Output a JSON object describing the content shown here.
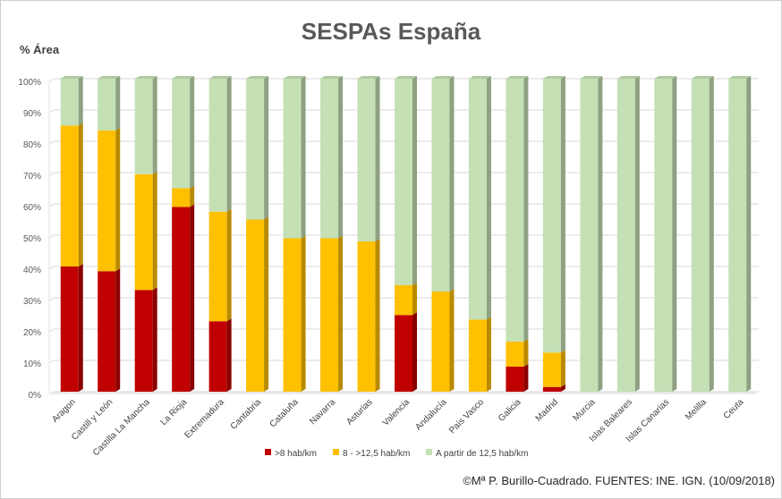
{
  "chart_data": {
    "type": "bar",
    "stacked": true,
    "percent_stacked": true,
    "title": "SESPAs España",
    "ylabel": "% Área",
    "xlabel": "",
    "ylim": [
      0,
      100
    ],
    "yticks": [
      "0%",
      "10%",
      "20%",
      "30%",
      "40%",
      "50%",
      "60%",
      "70%",
      "80%",
      "90%",
      "100%"
    ],
    "grid": true,
    "legend_position": "bottom",
    "categories": [
      "Aragon",
      "Castill y León",
      "Castilla La Mancha",
      "La Rioja",
      "Extremadura",
      "Cantabria",
      "Cataluña",
      "Navarra",
      "Asturias",
      "Valencia",
      "Andalucía",
      "País Vasco",
      "Galicia",
      "Madrid",
      "Murcia",
      "Islas Baleares",
      "Islas Canarias",
      "Melilla",
      "Ceuta"
    ],
    "series": [
      {
        "name": ">8 hab/km",
        "color": "#c00000",
        "values": [
          40,
          38.5,
          32.5,
          59,
          22.5,
          0,
          0,
          0,
          0,
          24.5,
          0,
          0,
          8,
          1.5,
          0,
          0,
          0,
          0,
          0
        ]
      },
      {
        "name": "8 - >12,5 hab/km",
        "color": "#ffc000",
        "values": [
          45,
          45,
          37,
          6,
          35,
          55,
          49,
          49,
          48,
          9.5,
          32,
          23,
          8,
          11,
          0,
          0,
          0,
          0,
          0
        ]
      },
      {
        "name": "A partir de 12,5 hab/km",
        "color": "#c5e0b4",
        "values": [
          15,
          16.5,
          30.5,
          35,
          42.5,
          45,
          51,
          51,
          52,
          66,
          68,
          77,
          84,
          87.5,
          100,
          100,
          100,
          100,
          100
        ]
      }
    ]
  },
  "credit": "©Mª P. Burillo-Cuadrado. FUENTES: INE. IGN. (10/09/2018)"
}
